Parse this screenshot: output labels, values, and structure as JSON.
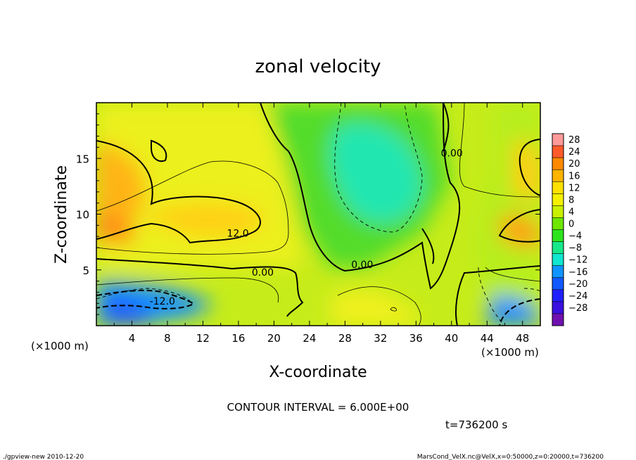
{
  "chart_data": {
    "type": "heatmap",
    "title": "zonal velocity",
    "xlabel": "X-coordinate",
    "ylabel": "Z-coordinate",
    "x_unit_label": "(×1000 m)",
    "y_unit_label": "(×1000 m)",
    "xlim": [
      0,
      50
    ],
    "ylim": [
      0,
      20
    ],
    "x_ticks": [
      "4",
      "8",
      "12",
      "16",
      "20",
      "24",
      "28",
      "32",
      "36",
      "40",
      "44",
      "48"
    ],
    "x_tick_values": [
      4,
      8,
      12,
      16,
      20,
      24,
      28,
      32,
      36,
      40,
      44,
      48
    ],
    "y_ticks": [
      "5",
      "10",
      "15"
    ],
    "y_tick_values": [
      5,
      10,
      15
    ],
    "colorbar_levels": [
      "28",
      "24",
      "20",
      "16",
      "12",
      "8",
      "4",
      "0",
      "−4",
      "−8",
      "−12",
      "−16",
      "−20",
      "−24",
      "−28"
    ],
    "colorbar_values": [
      28,
      24,
      20,
      16,
      12,
      8,
      4,
      0,
      -4,
      -8,
      -12,
      -16,
      -20,
      -24,
      -28
    ],
    "colorbar_colors": [
      "#ff9a9a",
      "#ff5a2a",
      "#ff8a00",
      "#ffb400",
      "#ffe100",
      "#f4f000",
      "#c8f000",
      "#6ee600",
      "#2ce41c",
      "#16e88a",
      "#10e6d0",
      "#1094ff",
      "#1058ff",
      "#2020ff",
      "#3a10e0",
      "#7010b0"
    ],
    "contour_labels": [
      {
        "text": "12.0",
        "x": 14.7,
        "z": 8.3
      },
      {
        "text": "0.00",
        "x": 17.5,
        "z": 4.8
      },
      {
        "text": "0.00",
        "x": 28.7,
        "z": 5.5
      },
      {
        "text": "0.00",
        "x": 38.8,
        "z": 15.5
      },
      {
        "text": "-12.0",
        "x": 6.0,
        "z": 2.2
      }
    ],
    "contour_interval_text": "CONTOUR INTERVAL = 6.000E+00",
    "time_text": "t=736200 s"
  },
  "footer": {
    "left": "./gpview-new  2010-12-20",
    "right": "MarsCond_VelX.nc@VelX,x=0:50000,z=0:20000,t=736200"
  },
  "colors": {
    "frame": "#000000",
    "background": "#ffffff"
  }
}
